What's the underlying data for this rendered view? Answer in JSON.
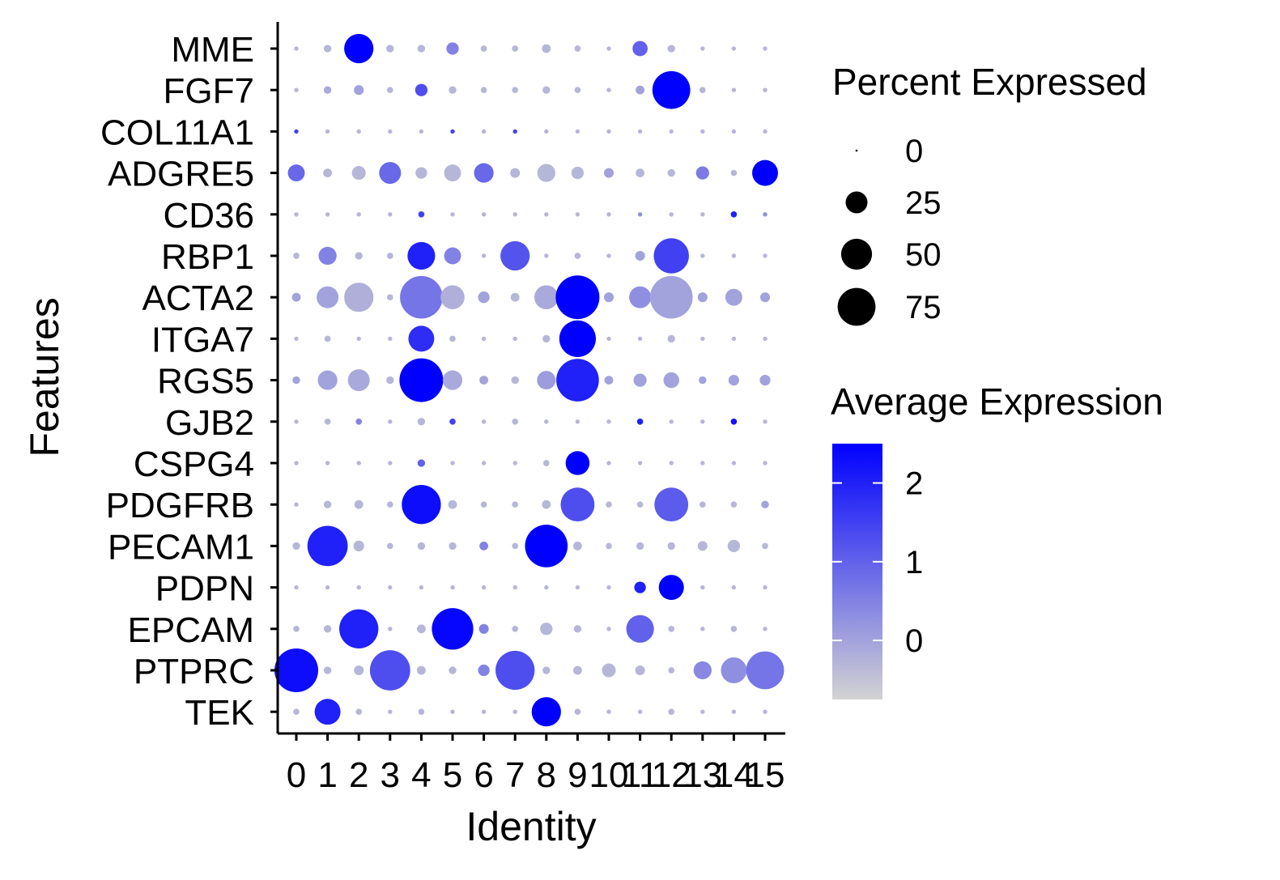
{
  "chart_data": {
    "type": "dot",
    "xlabel": "Identity",
    "ylabel": "Features",
    "categories": [
      "0",
      "1",
      "2",
      "3",
      "4",
      "5",
      "6",
      "7",
      "8",
      "9",
      "10",
      "11",
      "12",
      "13",
      "14",
      "15"
    ],
    "features": [
      "MME",
      "FGF7",
      "COL11A1",
      "ADGRE5",
      "CD36",
      "RBP1",
      "ACTA2",
      "ITGA7",
      "RGS5",
      "GJB2",
      "CSPG4",
      "PDGFRB",
      "PECAM1",
      "PDPN",
      "EPCAM",
      "PTPRC",
      "TEK"
    ],
    "pct_expressed": [
      [
        1,
        3,
        45,
        3,
        3,
        8,
        2,
        2,
        4,
        2,
        1,
        12,
        3,
        1,
        1,
        1
      ],
      [
        1,
        3,
        5,
        2,
        8,
        3,
        2,
        2,
        3,
        2,
        1,
        4,
        75,
        2,
        1,
        1
      ],
      [
        1,
        1,
        1,
        1,
        1,
        1,
        1,
        1,
        1,
        1,
        1,
        1,
        1,
        1,
        1,
        1
      ],
      [
        15,
        4,
        10,
        25,
        7,
        15,
        20,
        5,
        17,
        8,
        5,
        4,
        3,
        9,
        2,
        35
      ],
      [
        1,
        1,
        1,
        1,
        2,
        1,
        1,
        1,
        1,
        1,
        1,
        1,
        1,
        1,
        2,
        1
      ],
      [
        2,
        17,
        3,
        2,
        40,
        15,
        1,
        45,
        1,
        2,
        1,
        5,
        65,
        1,
        1,
        1
      ],
      [
        4,
        25,
        45,
        2,
        95,
        30,
        7,
        4,
        30,
        100,
        5,
        25,
        95,
        5,
        15,
        5
      ],
      [
        1,
        2,
        1,
        1,
        35,
        2,
        1,
        1,
        3,
        70,
        1,
        1,
        3,
        1,
        1,
        1
      ],
      [
        3,
        20,
        25,
        3,
        100,
        20,
        4,
        3,
        18,
        95,
        4,
        9,
        13,
        3,
        6,
        6
      ],
      [
        1,
        2,
        2,
        1,
        3,
        2,
        1,
        2,
        1,
        1,
        1,
        2,
        1,
        1,
        2,
        1
      ],
      [
        1,
        1,
        1,
        1,
        3,
        1,
        1,
        1,
        2,
        30,
        1,
        1,
        1,
        1,
        1,
        1
      ],
      [
        1,
        3,
        4,
        2,
        80,
        4,
        2,
        2,
        4,
        60,
        2,
        2,
        60,
        2,
        2,
        3
      ],
      [
        3,
        85,
        6,
        2,
        3,
        3,
        4,
        2,
        95,
        4,
        2,
        3,
        3,
        5,
        8,
        2
      ],
      [
        1,
        1,
        1,
        1,
        1,
        1,
        1,
        1,
        1,
        1,
        1,
        7,
        33,
        1,
        1,
        1
      ],
      [
        2,
        3,
        80,
        1,
        4,
        90,
        5,
        2,
        8,
        3,
        1,
        40,
        2,
        1,
        2,
        1
      ],
      [
        100,
        3,
        5,
        85,
        4,
        3,
        7,
        80,
        3,
        4,
        10,
        5,
        2,
        17,
        35,
        75
      ],
      [
        2,
        35,
        2,
        1,
        2,
        1,
        1,
        1,
        45,
        2,
        1,
        1,
        2,
        1,
        1,
        1
      ]
    ],
    "avg_expression": [
      [
        -0.3,
        -0.3,
        2.5,
        -0.3,
        -0.3,
        0.5,
        -0.3,
        -0.3,
        -0.3,
        -0.3,
        -0.3,
        1.0,
        -0.3,
        -0.3,
        -0.3,
        -0.3
      ],
      [
        -0.3,
        -0.1,
        0.0,
        -0.3,
        1.3,
        -0.3,
        -0.3,
        -0.3,
        -0.3,
        -0.3,
        -0.3,
        0.0,
        2.5,
        -0.3,
        -0.3,
        -0.3
      ],
      [
        1.5,
        -0.3,
        -0.3,
        -0.3,
        -0.3,
        1.5,
        -0.3,
        1.5,
        -0.3,
        -0.3,
        -0.3,
        -0.3,
        -0.3,
        -0.3,
        -0.3,
        -0.3
      ],
      [
        0.9,
        -0.3,
        -0.3,
        0.9,
        -0.3,
        -0.3,
        0.9,
        -0.3,
        -0.3,
        -0.3,
        0.0,
        -0.3,
        -0.3,
        0.6,
        -0.3,
        2.5
      ],
      [
        -0.3,
        -0.3,
        -0.3,
        -0.3,
        1.5,
        -0.3,
        -0.3,
        -0.3,
        -0.3,
        -0.3,
        -0.3,
        0.3,
        -0.3,
        -0.3,
        2.0,
        0.3
      ],
      [
        -0.3,
        0.5,
        -0.3,
        -0.3,
        2.0,
        0.5,
        -0.3,
        1.2,
        -0.3,
        -0.3,
        -0.3,
        0.0,
        1.5,
        -0.3,
        -0.3,
        -0.3
      ],
      [
        0.0,
        0.0,
        -0.2,
        -0.3,
        0.7,
        -0.2,
        0.0,
        -0.3,
        -0.1,
        2.5,
        0.0,
        0.3,
        0.0,
        0.0,
        0.0,
        0.0
      ],
      [
        -0.3,
        -0.3,
        -0.3,
        -0.3,
        1.8,
        -0.3,
        -0.3,
        -0.3,
        -0.3,
        2.5,
        -0.3,
        -0.3,
        -0.3,
        -0.3,
        -0.3,
        -0.3
      ],
      [
        0.0,
        0.0,
        -0.1,
        -0.3,
        2.5,
        -0.1,
        0.0,
        -0.3,
        0.1,
        2.0,
        0.0,
        0.0,
        0.0,
        0.0,
        0.0,
        0.0
      ],
      [
        -0.3,
        -0.3,
        0.5,
        -0.3,
        -0.3,
        1.5,
        -0.3,
        -0.3,
        -0.3,
        -0.3,
        -0.3,
        2.0,
        -0.3,
        -0.3,
        2.2,
        -0.3
      ],
      [
        -0.3,
        -0.3,
        -0.3,
        -0.3,
        1.0,
        -0.3,
        -0.3,
        -0.3,
        -0.3,
        2.5,
        -0.3,
        -0.3,
        -0.3,
        -0.3,
        -0.3,
        -0.3
      ],
      [
        -0.3,
        -0.3,
        -0.3,
        -0.3,
        2.3,
        -0.3,
        -0.3,
        -0.3,
        -0.3,
        1.3,
        -0.3,
        -0.3,
        1.1,
        -0.3,
        -0.3,
        0.0
      ],
      [
        -0.3,
        2.0,
        -0.3,
        -0.3,
        -0.3,
        -0.3,
        0.5,
        -0.3,
        2.5,
        -0.3,
        -0.3,
        -0.3,
        -0.3,
        -0.3,
        -0.3,
        -0.3
      ],
      [
        -0.3,
        -0.3,
        -0.3,
        -0.3,
        -0.3,
        -0.3,
        -0.3,
        -0.3,
        -0.3,
        -0.3,
        -0.3,
        2.0,
        2.5,
        -0.3,
        -0.3,
        -0.3
      ],
      [
        -0.3,
        -0.3,
        2.0,
        -0.3,
        -0.3,
        2.4,
        0.5,
        -0.3,
        -0.3,
        -0.3,
        -0.3,
        1.0,
        -0.3,
        -0.3,
        -0.3,
        -0.3
      ],
      [
        2.3,
        -0.3,
        -0.3,
        1.3,
        -0.3,
        -0.3,
        0.5,
        1.3,
        -0.3,
        -0.3,
        -0.3,
        -0.3,
        -0.3,
        0.4,
        0.3,
        0.7
      ],
      [
        -0.3,
        2.0,
        -0.3,
        -0.3,
        -0.3,
        -0.3,
        -0.3,
        -0.3,
        2.5,
        -0.3,
        -0.3,
        -0.3,
        -0.3,
        -0.3,
        -0.3,
        -0.3
      ]
    ],
    "size_legend": {
      "title": "Percent Expressed",
      "values": [
        0,
        25,
        50,
        75
      ],
      "labels": [
        "0",
        "25",
        "50",
        "75"
      ]
    },
    "color_legend": {
      "title": "Average Expression",
      "range": [
        -0.75,
        2.5
      ],
      "ticks": [
        0,
        1,
        2
      ],
      "labels": [
        "0",
        "1",
        "2"
      ],
      "low_color": "#D3D3D3",
      "high_color": "#0000FF"
    },
    "grid": false,
    "legend_position": "right"
  }
}
